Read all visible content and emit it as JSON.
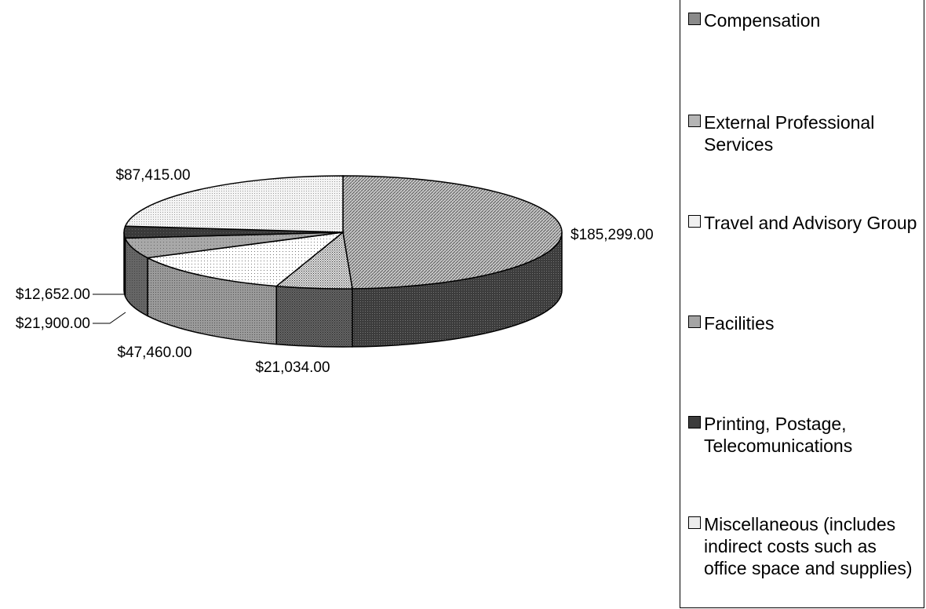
{
  "chart_data": {
    "type": "pie",
    "title": "",
    "categories": [
      "Compensation",
      "External Professional Services",
      "Travel and Advisory Group",
      "Facilities",
      "Printing, Postage, Telecomunications",
      "Miscellaneous (includes indirect costs such as office space and supplies)"
    ],
    "values": [
      185299,
      21034,
      47460,
      21900,
      12652,
      87415
    ],
    "data_labels": [
      "$185,299.00",
      "$21,034.00",
      "$47,460.00",
      "$21,900.00",
      "$12,652.00",
      "$87,415.00"
    ],
    "legend_position": "right",
    "style": "3d-pie"
  },
  "legend": {
    "items": [
      {
        "label": "Compensation",
        "color": "#8a8a8a"
      },
      {
        "label": "External Professional Services",
        "color": "#b0b0b0"
      },
      {
        "label": "Travel and Advisory Group",
        "color": "#f2f2f2"
      },
      {
        "label": "Facilities",
        "color": "#a6a6a6"
      },
      {
        "label": "Printing, Postage, Telecomunications",
        "color": "#404040"
      },
      {
        "label": "Miscellaneous (includes indirect costs such as office space and supplies)",
        "color": "#e8e8e8"
      }
    ]
  }
}
